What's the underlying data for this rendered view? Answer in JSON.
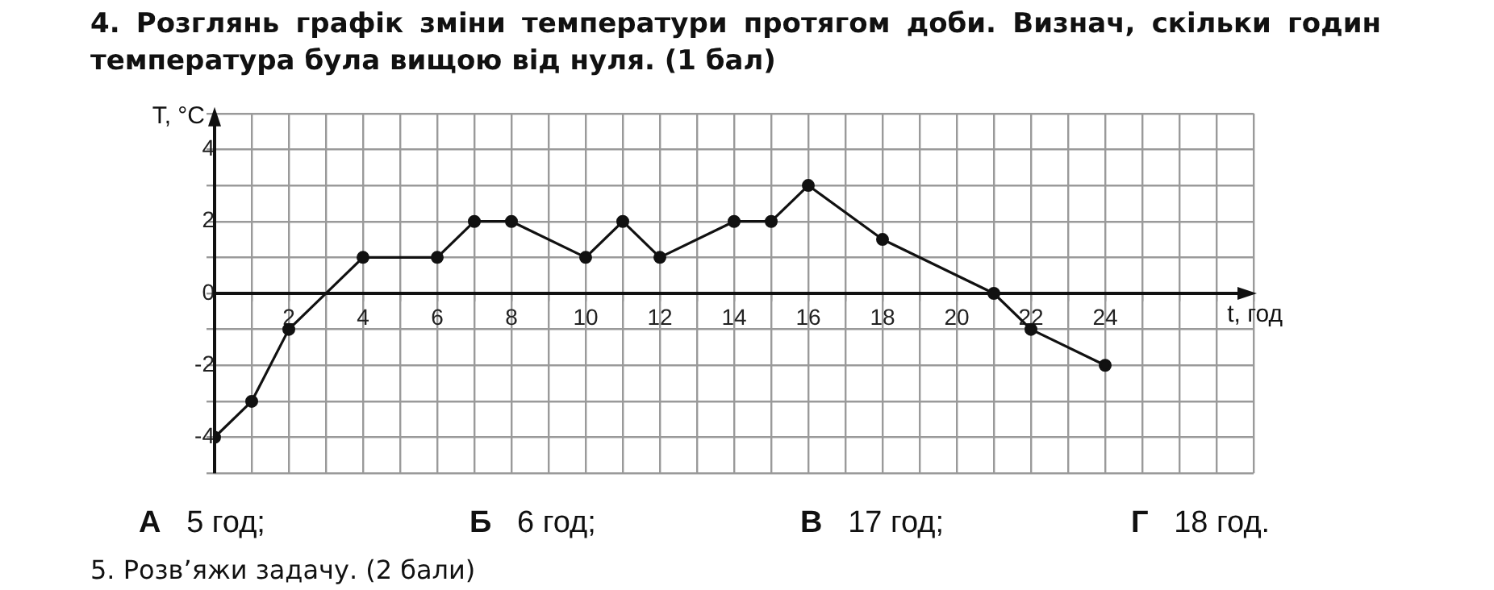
{
  "chart_data": {
    "type": "line",
    "title": "4. Розглянь графік зміни температури протягом доби. Визнач, скільки годин температура була вищою від нуля. (1 бал)",
    "xlabel": "t, год",
    "ylabel": "T, °C",
    "x": [
      0,
      1,
      2,
      4,
      6,
      7,
      8,
      10,
      11,
      12,
      14,
      15,
      16,
      18,
      21,
      22,
      24
    ],
    "series": [
      {
        "color": "#111111",
        "values": [
          -4,
          -3,
          -1,
          1,
          1,
          2,
          2,
          1,
          2,
          1,
          2,
          2,
          3,
          1.5,
          0,
          -1,
          -2
        ]
      }
    ],
    "xlim": [
      0,
      28
    ],
    "xticks": [
      {
        "value": 0,
        "label": null
      },
      {
        "value": 1,
        "label": null
      },
      2,
      {
        "value": 3,
        "label": null
      },
      4,
      {
        "value": 5,
        "label": null
      },
      6,
      {
        "value": 7,
        "label": null
      },
      8,
      {
        "value": 9,
        "label": null
      },
      10,
      {
        "value": 11,
        "label": null
      },
      12,
      {
        "value": 13,
        "label": null
      },
      14,
      {
        "value": 15,
        "label": null
      },
      16,
      {
        "value": 17,
        "label": null
      },
      18,
      {
        "value": 19,
        "label": null
      },
      20,
      {
        "value": 21,
        "label": null
      },
      22,
      {
        "value": 23,
        "label": null
      },
      24,
      {
        "value": 25,
        "label": null
      },
      {
        "value": 26,
        "label": null
      },
      {
        "value": 27,
        "label": null
      },
      {
        "value": 28,
        "label": null
      }
    ],
    "ylim": [
      -5,
      5
    ],
    "yticks": [
      {
        "value": -5,
        "label": null
      },
      -4,
      {
        "value": -3,
        "label": null
      },
      -2,
      {
        "value": -1,
        "label": null
      },
      0,
      {
        "value": 1,
        "label": null
      },
      2,
      {
        "value": 3,
        "label": null
      },
      4,
      {
        "value": 5,
        "label": null
      }
    ],
    "grid": true,
    "legend": false,
    "marker": "circle",
    "line_style": "solid",
    "annotations": [
      "А 5 год;",
      "Б 6 год;",
      "В 17 год;",
      "Г 18 год.",
      "5. Розв’яжи задачу. (2 бали)"
    ]
  }
}
